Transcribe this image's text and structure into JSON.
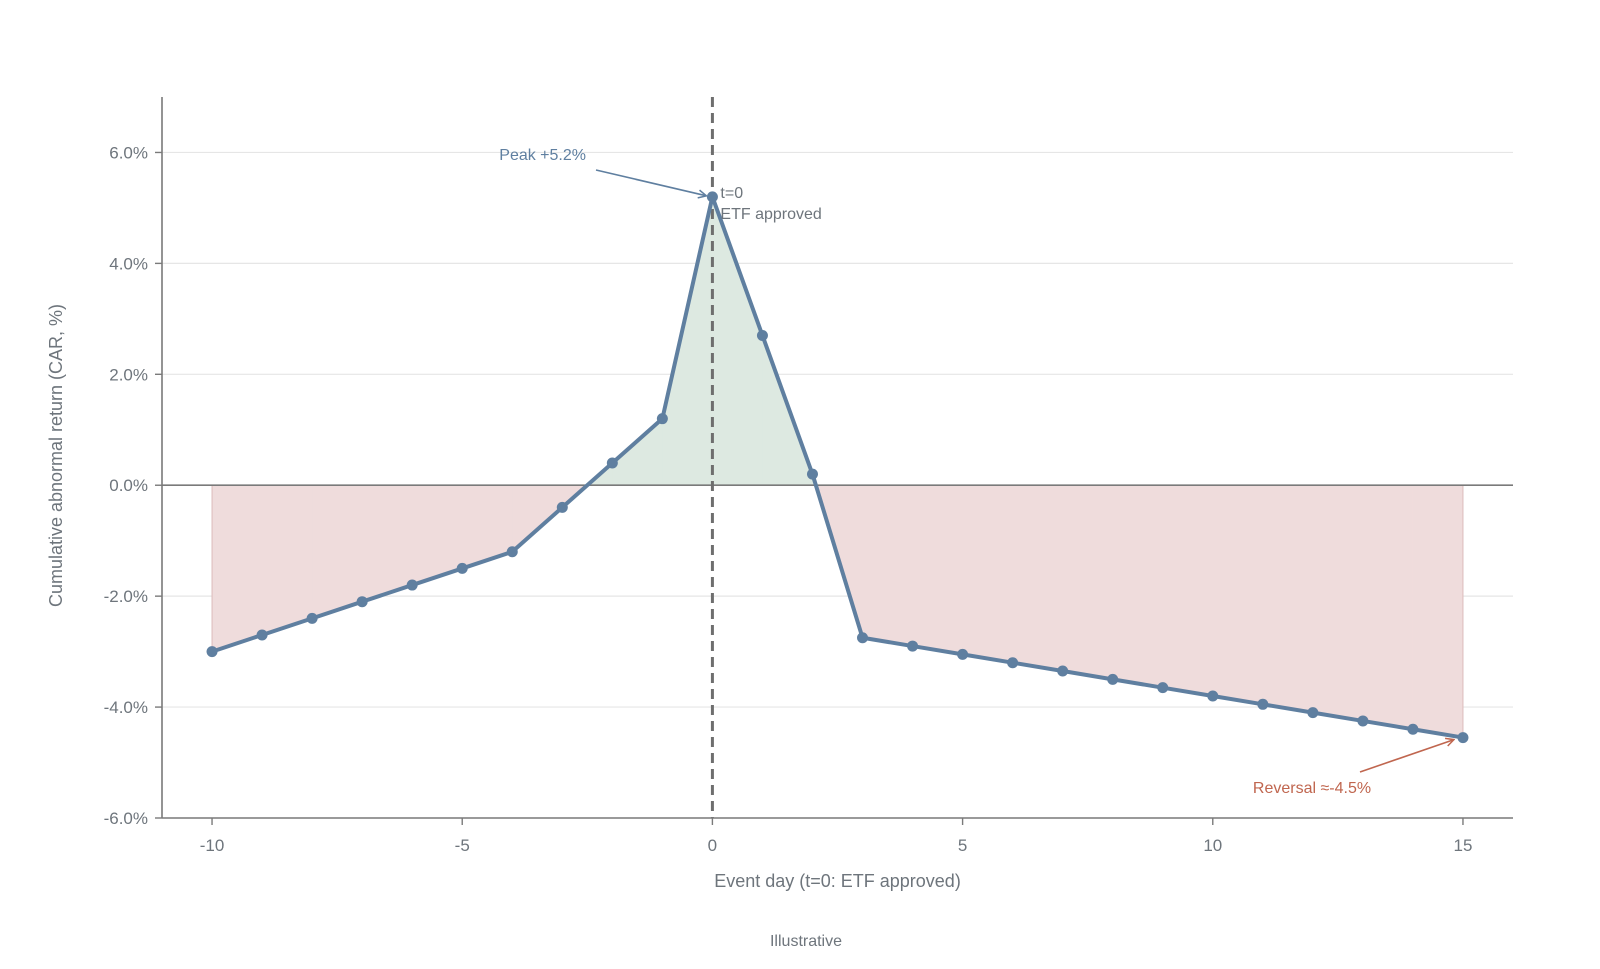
{
  "chart_data": {
    "type": "line",
    "title": "",
    "xlabel": "Event day (t=0: ETF approved)",
    "ylabel": "Cumulative abnormal return (CAR, %)",
    "footnote": "Illustrative",
    "xlim": [
      -11,
      16
    ],
    "ylim": [
      -6.0,
      7.0
    ],
    "xticks": [
      -10,
      -5,
      0,
      5,
      10,
      15
    ],
    "xtick_labels": [
      "-10",
      "-5",
      "0",
      "5",
      "10",
      "15"
    ],
    "yticks": [
      -6,
      -4,
      -2,
      0,
      2,
      4,
      6
    ],
    "ytick_labels": [
      "-6.0%",
      "-4.0%",
      "-2.0%",
      "0.0%",
      "2.0%",
      "4.0%",
      "6.0%"
    ],
    "grid": "horizontal",
    "series": [
      {
        "x": [
          -10,
          -9,
          -8,
          -7,
          -6,
          -5,
          -4,
          -3,
          -2,
          -1,
          0,
          1,
          2,
          3,
          4,
          5,
          6,
          7,
          8,
          9,
          10,
          11,
          12,
          13,
          14,
          15
        ],
        "values": [
          -3.0,
          -2.7,
          -2.4,
          -2.1,
          -1.8,
          -1.5,
          -1.2,
          -0.4,
          0.4,
          1.2,
          5.2,
          2.7,
          0.2,
          -2.75,
          -2.9,
          -3.05,
          -3.2,
          -3.35,
          -3.5,
          -3.65,
          -3.8,
          -3.95,
          -4.1,
          -4.25,
          -4.4,
          -4.55
        ],
        "color": "#5f7fa0"
      }
    ],
    "fill_positive_color": "#dde9e1",
    "fill_negative_color": "#efdcdc",
    "event_line": {
      "x": 0,
      "label_line1": "t=0",
      "label_line2": "ETF approved",
      "color": "#6e6e6e"
    },
    "annotations": [
      {
        "text": "Peak +5.2%",
        "x": 0,
        "y": 5.2,
        "color": "#5f7fa0"
      },
      {
        "text": "Reversal ≈-4.5%",
        "x": 15,
        "y": -4.55,
        "color": "#c0664f"
      }
    ]
  }
}
